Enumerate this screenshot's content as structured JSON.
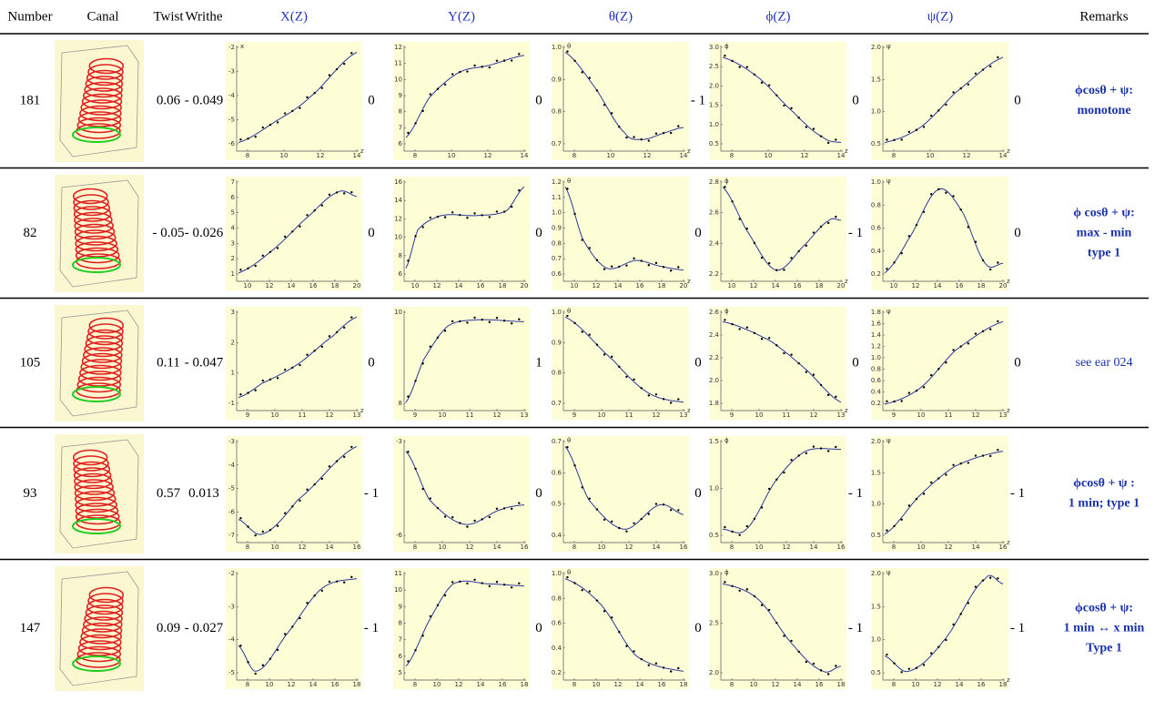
{
  "header": [
    "Number",
    "Canal",
    "Twist",
    "Writhe",
    "X(Z)",
    "Y(Z)",
    "θ(Z)",
    "ϕ(Z)",
    "ψ(Z)",
    "Remarks"
  ],
  "rows": [
    {
      "number": "181",
      "twist": "0.06",
      "writhe": "- 0.049",
      "plots": [
        {
          "y_label": "x",
          "x_label": "z",
          "x_ticks": [
            "8",
            "10",
            "12",
            "14"
          ],
          "y_ticks": [
            "-6",
            "-5",
            "-4",
            "-3",
            "-2"
          ],
          "after": "0"
        },
        {
          "y_label": "",
          "x_label": "",
          "x_ticks": [
            "8",
            "10",
            "12",
            "14"
          ],
          "y_ticks": [
            "6",
            "7",
            "8",
            "9",
            "10",
            "11",
            "12"
          ],
          "after": "0"
        },
        {
          "y_label": "θ",
          "x_label": "z",
          "x_ticks": [
            "8",
            "10",
            "12",
            "14"
          ],
          "y_ticks": [
            "0.7",
            "0.8",
            "0.9",
            "1.0"
          ],
          "after": "- 1"
        },
        {
          "y_label": "ϕ",
          "x_label": "z",
          "x_ticks": [
            "8",
            "10",
            "12",
            "14"
          ],
          "y_ticks": [
            "0.5",
            "1.0",
            "1.5",
            "2.0",
            "2.5",
            "3.0"
          ],
          "after": "0"
        },
        {
          "y_label": "ψ",
          "x_label": "z",
          "x_ticks": [
            "8",
            "10",
            "12",
            "14"
          ],
          "y_ticks": [
            "0.5",
            "1.0",
            "1.5",
            "2.0"
          ],
          "after": "0"
        }
      ],
      "remarks": [
        "ϕcosθ + ψ:",
        "monotone"
      ]
    },
    {
      "number": "82",
      "twist": "- 0.05",
      "writhe": "- 0.026",
      "plots": [
        {
          "y_label": "",
          "x_label": "",
          "x_ticks": [
            "10",
            "12",
            "14",
            "16",
            "18",
            "20"
          ],
          "y_ticks": [
            "1",
            "2",
            "3",
            "4",
            "5",
            "6",
            "7"
          ],
          "after": "0"
        },
        {
          "y_label": "",
          "x_label": "",
          "x_ticks": [
            "10",
            "12",
            "14",
            "16",
            "18",
            "20"
          ],
          "y_ticks": [
            "6",
            "8",
            "10",
            "12",
            "14",
            "16"
          ],
          "after": "0"
        },
        {
          "y_label": "θ",
          "x_label": "z",
          "x_ticks": [
            "10",
            "12",
            "14",
            "16",
            "18",
            "20"
          ],
          "y_ticks": [
            "0.6",
            "0.7",
            "0.8",
            "0.9",
            "1.0",
            "1.1",
            "1.2"
          ],
          "after": "0"
        },
        {
          "y_label": "ϕ",
          "x_label": "z",
          "x_ticks": [
            "10",
            "12",
            "14",
            "16",
            "18",
            "20"
          ],
          "y_ticks": [
            "2.2",
            "2.4",
            "2.6",
            "2.8"
          ],
          "after": "- 1"
        },
        {
          "y_label": "ψ",
          "x_label": "z",
          "x_ticks": [
            "10",
            "12",
            "14",
            "16",
            "18",
            "20"
          ],
          "y_ticks": [
            "0.2",
            "0.4",
            "0.6",
            "0.8",
            "1.0"
          ],
          "after": "0"
        }
      ],
      "remarks": [
        "ϕ cosθ + ψ:",
        "max - min",
        "type 1"
      ]
    },
    {
      "number": "105",
      "twist": "0.11",
      "writhe": "- 0.047",
      "plots": [
        {
          "y_label": "",
          "x_label": "z",
          "x_ticks": [
            "9",
            "10",
            "11",
            "12",
            "13"
          ],
          "y_ticks": [
            "-1",
            "1",
            "2",
            "3"
          ],
          "after": "0"
        },
        {
          "y_label": "",
          "x_label": "",
          "x_ticks": [
            "9",
            "10",
            "11",
            "12",
            "13"
          ],
          "y_ticks": [
            "8",
            "10"
          ],
          "after": "1"
        },
        {
          "y_label": "θ",
          "x_label": "z",
          "x_ticks": [
            "9",
            "10",
            "11",
            "12",
            "13"
          ],
          "y_ticks": [
            "0.7",
            "0.8",
            "0.9",
            "1.0"
          ],
          "after": "0"
        },
        {
          "y_label": "ϕ",
          "x_label": "z",
          "x_ticks": [
            "9",
            "10",
            "11",
            "12",
            "13"
          ],
          "y_ticks": [
            "1.8",
            "2.0",
            "2.2",
            "2.4",
            "2.6"
          ],
          "after": "0"
        },
        {
          "y_label": "ψ",
          "x_label": "z",
          "x_ticks": [
            "9",
            "10",
            "11",
            "12",
            "13"
          ],
          "y_ticks": [
            "0.2",
            "0.4",
            "0.6",
            "0.8",
            "1.0",
            "1.2",
            "1.4",
            "1.6",
            "1.8"
          ],
          "after": "0"
        }
      ],
      "remarks": [
        "see ear 024"
      ]
    },
    {
      "number": "93",
      "twist": "0.57",
      "writhe": "0.013",
      "plots": [
        {
          "y_label": "",
          "x_label": "",
          "x_ticks": [
            "8",
            "10",
            "12",
            "14",
            "16"
          ],
          "y_ticks": [
            "-7",
            "-6",
            "-5",
            "-4",
            "-3"
          ],
          "after": "- 1"
        },
        {
          "y_label": "",
          "x_label": "",
          "x_ticks": [
            "8",
            "10",
            "12",
            "14",
            "16"
          ],
          "y_ticks": [
            "-6",
            "-3"
          ],
          "after": "0"
        },
        {
          "y_label": "θ",
          "x_label": "",
          "x_ticks": [
            "8",
            "10",
            "12",
            "14",
            "16"
          ],
          "y_ticks": [
            "0.4",
            "0.5",
            "0.6",
            "0.7"
          ],
          "after": "0"
        },
        {
          "y_label": "ϕ",
          "x_label": "",
          "x_ticks": [
            "8",
            "10",
            "12",
            "14",
            "16"
          ],
          "y_ticks": [
            "0.5",
            "1.0",
            "1.5"
          ],
          "after": "- 1"
        },
        {
          "y_label": "ψ",
          "x_label": "z",
          "x_ticks": [
            "8",
            "10",
            "12",
            "14",
            "16"
          ],
          "y_ticks": [
            "0.5",
            "1.0",
            "1.5",
            "2.0"
          ],
          "after": "- 1"
        }
      ],
      "remarks": [
        "ϕcosθ + ψ :",
        "1 min;  type 1"
      ]
    },
    {
      "number": "147",
      "twist": "0.09",
      "writhe": "- 0.027",
      "plots": [
        {
          "y_label": "",
          "x_label": "",
          "x_ticks": [
            "8",
            "10",
            "12",
            "14",
            "16",
            "18"
          ],
          "y_ticks": [
            "-5",
            "-4",
            "-3",
            "-2"
          ],
          "after": "- 1"
        },
        {
          "y_label": "",
          "x_label": "",
          "x_ticks": [
            "8",
            "10",
            "12",
            "14",
            "16",
            "18"
          ],
          "y_ticks": [
            "5",
            "6",
            "7",
            "8",
            "9",
            "10",
            "11"
          ],
          "after": "0"
        },
        {
          "y_label": "θ",
          "x_label": "",
          "x_ticks": [
            "8",
            "10",
            "12",
            "14",
            "16",
            "18"
          ],
          "y_ticks": [
            "0.2",
            "0.4",
            "0.6",
            "0.8",
            "1.0"
          ],
          "after": "0"
        },
        {
          "y_label": "ϕ",
          "x_label": "",
          "x_ticks": [
            "8",
            "10",
            "12",
            "14",
            "16",
            "18"
          ],
          "y_ticks": [
            "2.0",
            "2.5",
            "3.0"
          ],
          "after": "- 1"
        },
        {
          "y_label": "ψ",
          "x_label": "z",
          "x_ticks": [
            "8",
            "10",
            "12",
            "14",
            "16",
            "18"
          ],
          "y_ticks": [
            "0.5",
            "1.0",
            "1.5",
            "2.0"
          ],
          "after": "- 1"
        }
      ],
      "remarks": [
        "ϕcosθ + ψ:",
        "1 min ↔ x min",
        "Type 1"
      ]
    }
  ]
}
